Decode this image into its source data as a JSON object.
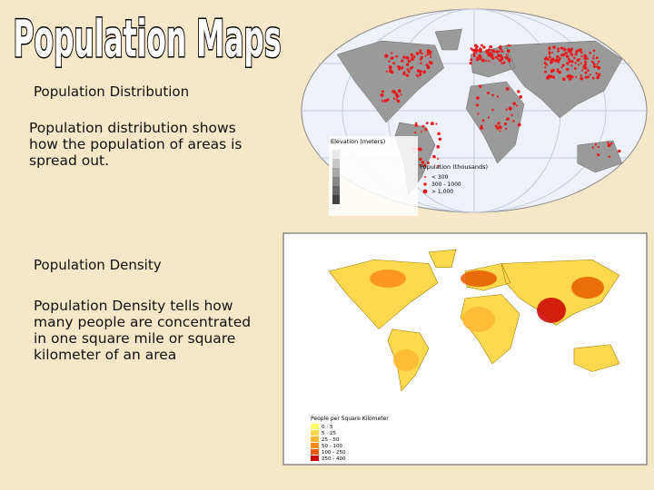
{
  "slide": {
    "title": "Population Maps",
    "sections": [
      {
        "heading": "Population Distribution",
        "body": "Population distribution shows how the population of areas is spread out."
      },
      {
        "heading": "Population Density",
        "body": "Population Density tells how many people are concentrated in one square mile or square kilometer of an area"
      }
    ],
    "distribution_map": {
      "elevation_legend": "Elevation (meters)",
      "population_legend": "Population (thousands)",
      "population_classes": [
        "< 300",
        "300 - 1000",
        "> 1,000"
      ]
    },
    "density_map": {
      "legend_title": "People per Square Kilometer",
      "classes": [
        "0 - 5",
        "5 - 25",
        "25 - 50",
        "50 - 100",
        "100 - 250",
        "250 - 400"
      ]
    }
  }
}
